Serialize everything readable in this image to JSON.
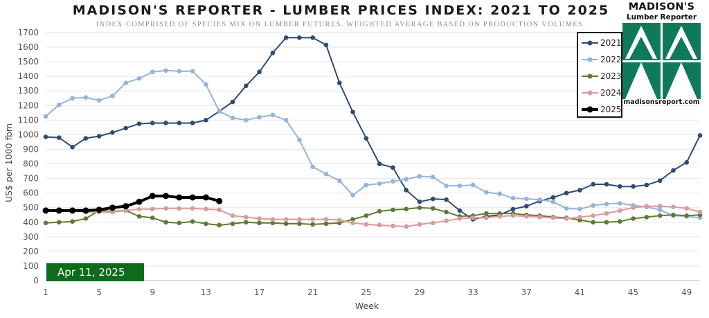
{
  "header": {
    "title": "MADISON'S REPORTER - LUMBER PRICES INDEX: 2021 TO 2025",
    "subtitle": "INDEX COMPRISED OF SPECIES MIX ON LUMBER FUTURES. WEIGHTED AVERAGE BASED ON PRODUCTION VOLUMES."
  },
  "logo": {
    "title_line1": "MADISON'S",
    "title_line2": "Lumber Reporter",
    "url": "madisonsreport.com",
    "color": "#0f7a5a"
  },
  "date_badge": "Apr 11, 2025",
  "chart_data": {
    "type": "line",
    "title": "MADISON'S REPORTER - LUMBER PRICES INDEX: 2021 TO 2025",
    "subtitle": "INDEX COMPRISED OF SPECIES MIX ON LUMBER FUTURES. WEIGHTED AVERAGE BASED ON PRODUCTION VOLUMES.",
    "xlabel": "Week",
    "ylabel": "US$ per 1000 fbm",
    "xlim": [
      1,
      50
    ],
    "ylim": [
      0,
      1700
    ],
    "x_ticks": [
      1,
      5,
      9,
      13,
      17,
      21,
      25,
      29,
      33,
      37,
      41,
      45,
      49
    ],
    "y_ticks": [
      0,
      100,
      200,
      300,
      400,
      500,
      600,
      700,
      800,
      900,
      1000,
      1100,
      1200,
      1300,
      1400,
      1500,
      1600,
      1700
    ],
    "grid": true,
    "legend_position": "top-right",
    "series": [
      {
        "name": "2021",
        "color": "#2e4b73",
        "values": [
          985,
          980,
          915,
          975,
          990,
          1015,
          1045,
          1075,
          1080,
          1080,
          1080,
          1080,
          1100,
          1160,
          1225,
          1335,
          1430,
          1560,
          1665,
          1665,
          1665,
          1615,
          1355,
          1155,
          975,
          800,
          775,
          620,
          540,
          560,
          555,
          480,
          420,
          440,
          450,
          490,
          510,
          545,
          570,
          600,
          620,
          660,
          660,
          645,
          645,
          655,
          685,
          755,
          810,
          995
        ]
      },
      {
        "name": "2022",
        "color": "#95b4db",
        "values": [
          1125,
          1205,
          1250,
          1255,
          1235,
          1265,
          1355,
          1385,
          1430,
          1440,
          1435,
          1435,
          1345,
          1160,
          1115,
          1100,
          1120,
          1135,
          1100,
          965,
          780,
          730,
          685,
          585,
          655,
          665,
          680,
          695,
          715,
          710,
          650,
          650,
          655,
          605,
          595,
          565,
          560,
          555,
          540,
          495,
          490,
          515,
          525,
          530,
          515,
          505,
          485,
          445,
          440,
          430
        ]
      },
      {
        "name": "2023",
        "color": "#5f7a32",
        "values": [
          395,
          400,
          405,
          425,
          480,
          475,
          480,
          440,
          430,
          400,
          395,
          405,
          390,
          380,
          390,
          400,
          395,
          395,
          390,
          390,
          385,
          390,
          395,
          420,
          445,
          475,
          485,
          490,
          500,
          495,
          470,
          440,
          445,
          460,
          460,
          460,
          450,
          445,
          435,
          430,
          415,
          400,
          400,
          405,
          425,
          435,
          445,
          450,
          445,
          450
        ]
      },
      {
        "name": "2024",
        "color": "#d99b9b",
        "values": [
          480,
          475,
          480,
          470,
          470,
          470,
          480,
          490,
          490,
          495,
          495,
          495,
          490,
          485,
          445,
          435,
          425,
          420,
          420,
          420,
          420,
          420,
          415,
          395,
          385,
          380,
          375,
          370,
          385,
          395,
          410,
          425,
          430,
          430,
          440,
          445,
          440,
          435,
          430,
          425,
          435,
          445,
          460,
          480,
          500,
          510,
          510,
          505,
          495,
          470
        ]
      },
      {
        "name": "2025",
        "color": "#000000",
        "values": [
          480,
          480,
          480,
          480,
          485,
          500,
          510,
          540,
          580,
          580,
          570,
          570,
          570,
          545
        ]
      }
    ]
  }
}
